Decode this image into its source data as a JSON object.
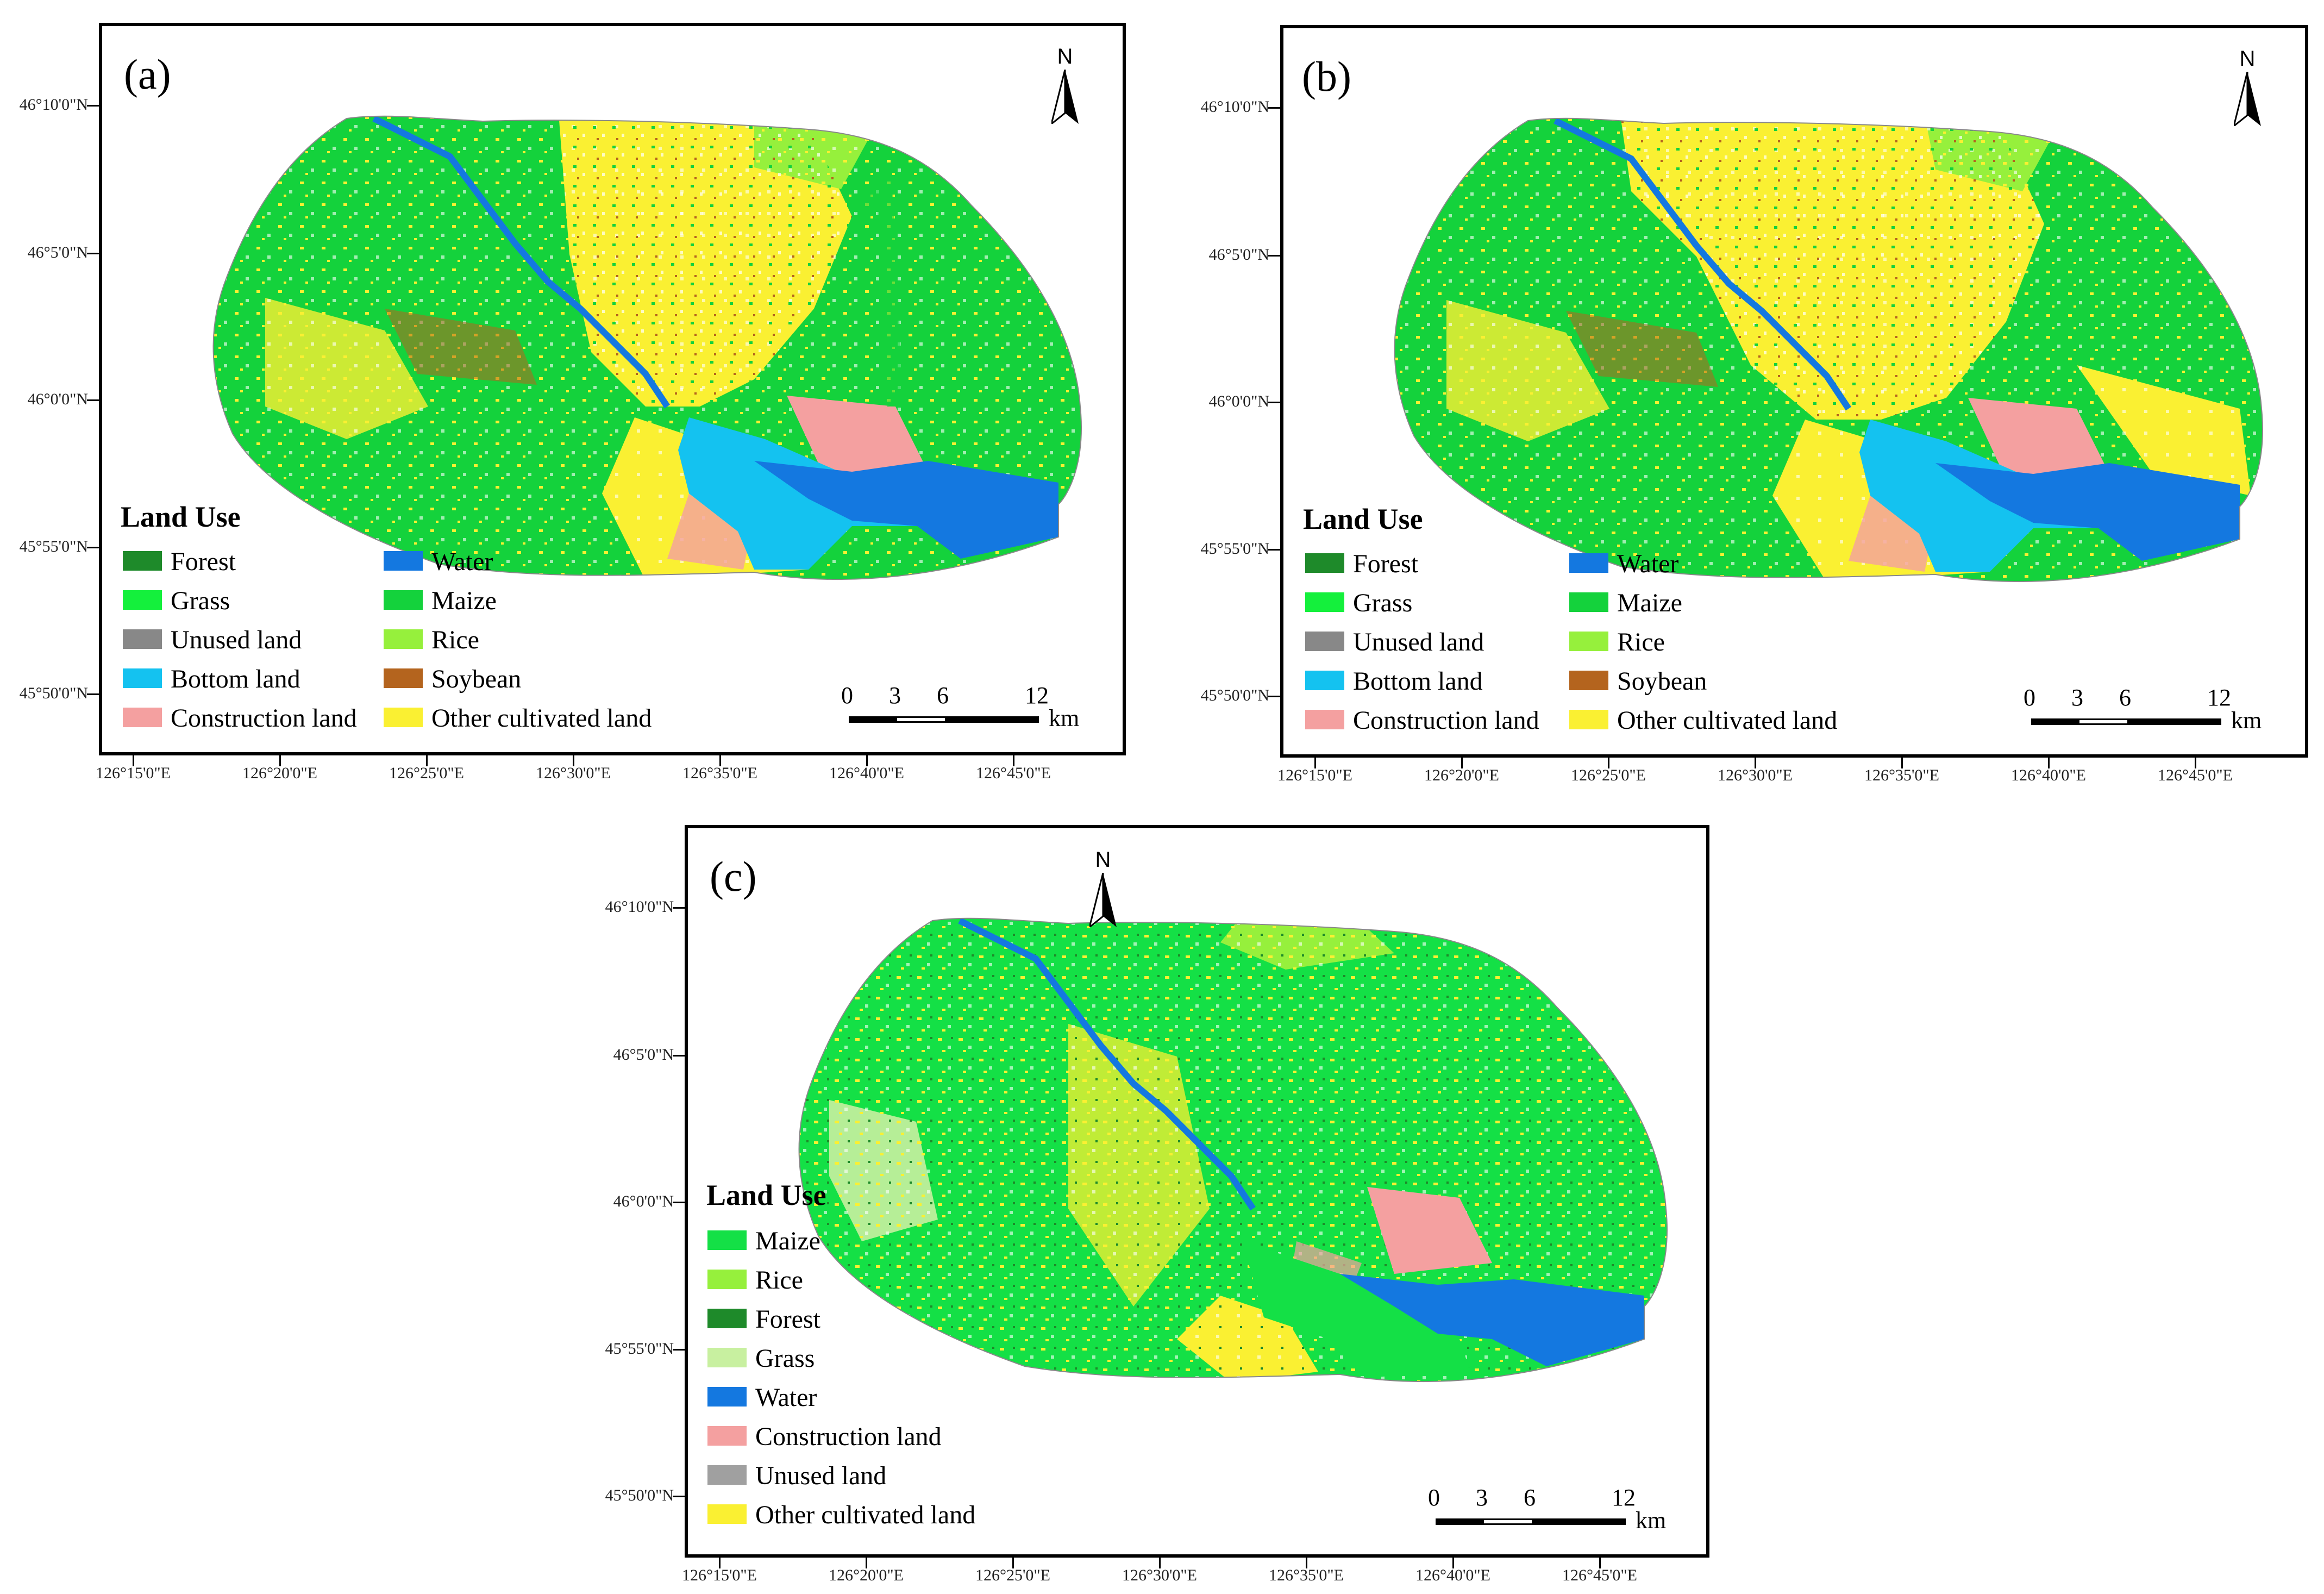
{
  "panels": [
    {
      "label": "(a)",
      "north": "N",
      "legend_title": "Land Use",
      "legend": [
        {
          "label": "Forest",
          "color": "#1e8a2a"
        },
        {
          "label": "Grass",
          "color": "#14f03c"
        },
        {
          "label": "Unused land",
          "color": "#888888"
        },
        {
          "label": "Bottom land",
          "color": "#14c2f0"
        },
        {
          "label": "Construction land",
          "color": "#f4a0a0"
        },
        {
          "label": "Water",
          "color": "#1478e0"
        },
        {
          "label": "Maize",
          "color": "#14d23c"
        },
        {
          "label": "Rice",
          "color": "#96f03c"
        },
        {
          "label": "Soybean",
          "color": "#b4641e"
        },
        {
          "label": "Other cultivated land",
          "color": "#faf032"
        }
      ],
      "lat_labels": [
        "46°10'0\"N",
        "46°5'0\"N",
        "46°0'0\"N",
        "45°55'0\"N",
        "45°50'0\"N"
      ],
      "lon_labels": [
        "126°15'0\"E",
        "126°20'0\"E",
        "126°25'0\"E",
        "126°30'0\"E",
        "126°35'0\"E",
        "126°40'0\"E",
        "126°45'0\"E"
      ],
      "scale_labels": [
        "0",
        "3",
        "6",
        "12"
      ],
      "scale_unit": "km"
    },
    {
      "label": "(b)",
      "north": "N",
      "legend_title": "Land Use",
      "legend": [
        {
          "label": "Forest",
          "color": "#1e8a2a"
        },
        {
          "label": "Grass",
          "color": "#14f03c"
        },
        {
          "label": "Unused land",
          "color": "#888888"
        },
        {
          "label": "Bottom land",
          "color": "#14c2f0"
        },
        {
          "label": "Construction land",
          "color": "#f4a0a0"
        },
        {
          "label": "Water",
          "color": "#1478e0"
        },
        {
          "label": "Maize",
          "color": "#14d23c"
        },
        {
          "label": "Rice",
          "color": "#96f03c"
        },
        {
          "label": "Soybean",
          "color": "#b4641e"
        },
        {
          "label": "Other cultivated land",
          "color": "#faf032"
        }
      ],
      "lat_labels": [
        "46°10'0\"N",
        "46°5'0\"N",
        "46°0'0\"N",
        "45°55'0\"N",
        "45°50'0\"N"
      ],
      "lon_labels": [
        "126°15'0\"E",
        "126°20'0\"E",
        "126°25'0\"E",
        "126°30'0\"E",
        "126°35'0\"E",
        "126°40'0\"E",
        "126°45'0\"E"
      ],
      "scale_labels": [
        "0",
        "3",
        "6",
        "12"
      ],
      "scale_unit": "km"
    },
    {
      "label": "(c)",
      "north": "N",
      "legend_title": "Land Use",
      "legend": [
        {
          "label": "Maize",
          "color": "#14e046"
        },
        {
          "label": "Rice",
          "color": "#96f03c"
        },
        {
          "label": "Forest",
          "color": "#1e8a2a"
        },
        {
          "label": "Grass",
          "color": "#c8f0a0"
        },
        {
          "label": "Water",
          "color": "#1478e0"
        },
        {
          "label": "Construction land",
          "color": "#f4a0a0"
        },
        {
          "label": "Unused land",
          "color": "#a0a0a0"
        },
        {
          "label": "Other cultivated land",
          "color": "#faf032"
        }
      ],
      "lat_labels": [
        "46°10'0\"N",
        "46°5'0\"N",
        "46°0'0\"N",
        "45°55'0\"N",
        "45°50'0\"N"
      ],
      "lon_labels": [
        "126°15'0\"E",
        "126°20'0\"E",
        "126°25'0\"E",
        "126°30'0\"E",
        "126°35'0\"E",
        "126°40'0\"E",
        "126°45'0\"E"
      ],
      "scale_labels": [
        "0",
        "3",
        "6",
        "12"
      ],
      "scale_unit": "km"
    }
  ]
}
